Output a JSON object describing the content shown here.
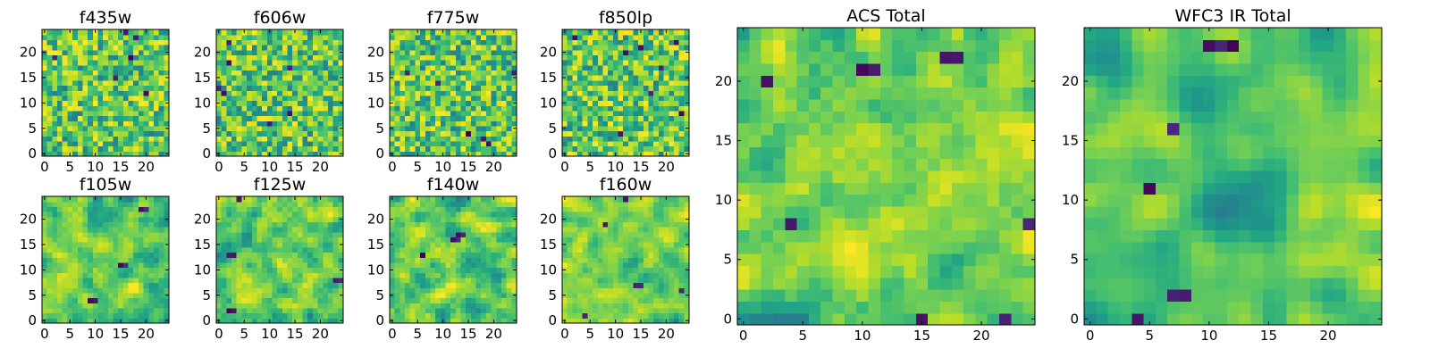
{
  "figure": {
    "colormap": "viridis",
    "colors": {
      "low": "#440154",
      "mid": "#21918c",
      "high": "#fde725",
      "frame": "#000000",
      "background": "#ffffff"
    }
  },
  "chart_data": [
    {
      "type": "heatmap",
      "title": "f435w",
      "xticks": [
        "0",
        "5",
        "10",
        "15",
        "20"
      ],
      "yticks": [
        "0",
        "5",
        "10",
        "15",
        "20"
      ],
      "xlim": [
        0,
        25
      ],
      "ylim": [
        0,
        25
      ],
      "grid": false,
      "value_range": [
        0,
        1
      ],
      "seed": 11,
      "smooth": 0,
      "low_spots": 6
    },
    {
      "type": "heatmap",
      "title": "f606w",
      "xticks": [
        "0",
        "5",
        "10",
        "15",
        "20"
      ],
      "yticks": [
        "0",
        "5",
        "10",
        "15",
        "20"
      ],
      "xlim": [
        0,
        25
      ],
      "ylim": [
        0,
        25
      ],
      "grid": false,
      "value_range": [
        0,
        1
      ],
      "seed": 23,
      "smooth": 0,
      "low_spots": 7
    },
    {
      "type": "heatmap",
      "title": "f775w",
      "xticks": [
        "0",
        "5",
        "10",
        "15",
        "20"
      ],
      "yticks": [
        "0",
        "5",
        "10",
        "15",
        "20"
      ],
      "xlim": [
        0,
        25
      ],
      "ylim": [
        0,
        25
      ],
      "grid": false,
      "value_range": [
        0,
        1
      ],
      "seed": 37,
      "smooth": 0,
      "low_spots": 6
    },
    {
      "type": "heatmap",
      "title": "f850lp",
      "xticks": [
        "0",
        "5",
        "10",
        "15",
        "20"
      ],
      "yticks": [
        "0",
        "5",
        "10",
        "15",
        "20"
      ],
      "xlim": [
        0,
        25
      ],
      "ylim": [
        0,
        25
      ],
      "grid": false,
      "value_range": [
        0,
        1
      ],
      "seed": 41,
      "smooth": 0,
      "low_spots": 8
    },
    {
      "type": "heatmap",
      "title": "f105w",
      "xticks": [
        "0",
        "5",
        "10",
        "15",
        "20"
      ],
      "yticks": [
        "0",
        "5",
        "10",
        "15",
        "20"
      ],
      "xlim": [
        0,
        25
      ],
      "ylim": [
        0,
        25
      ],
      "grid": false,
      "value_range": [
        0,
        1
      ],
      "seed": 53,
      "smooth": 1,
      "low_spots": 3
    },
    {
      "type": "heatmap",
      "title": "f125w",
      "xticks": [
        "0",
        "5",
        "10",
        "15",
        "20"
      ],
      "yticks": [
        "0",
        "5",
        "10",
        "15",
        "20"
      ],
      "xlim": [
        0,
        25
      ],
      "ylim": [
        0,
        25
      ],
      "grid": false,
      "value_range": [
        0,
        1
      ],
      "seed": 67,
      "smooth": 1,
      "low_spots": 4
    },
    {
      "type": "heatmap",
      "title": "f140w",
      "xticks": [
        "0",
        "5",
        "10",
        "15",
        "20"
      ],
      "yticks": [
        "0",
        "5",
        "10",
        "15",
        "20"
      ],
      "xlim": [
        0,
        25
      ],
      "ylim": [
        0,
        25
      ],
      "grid": false,
      "value_range": [
        0,
        1
      ],
      "seed": 71,
      "smooth": 1,
      "low_spots": 3
    },
    {
      "type": "heatmap",
      "title": "f160w",
      "xticks": [
        "0",
        "5",
        "10",
        "15",
        "20"
      ],
      "yticks": [
        "0",
        "5",
        "10",
        "15",
        "20"
      ],
      "xlim": [
        0,
        25
      ],
      "ylim": [
        0,
        25
      ],
      "grid": false,
      "value_range": [
        0,
        1
      ],
      "seed": 83,
      "smooth": 1,
      "low_spots": 5
    },
    {
      "type": "heatmap",
      "title": "ACS Total",
      "xticks": [
        "0",
        "5",
        "10",
        "15",
        "20"
      ],
      "yticks": [
        "0",
        "5",
        "10",
        "15",
        "20"
      ],
      "xlim": [
        0,
        25
      ],
      "ylim": [
        0,
        25
      ],
      "grid": false,
      "value_range": [
        0,
        1
      ],
      "seed": 97,
      "smooth": 1,
      "low_spots": 7
    },
    {
      "type": "heatmap",
      "title": "WFC3 IR Total",
      "xticks": [
        "0",
        "5",
        "10",
        "15",
        "20"
      ],
      "yticks": [
        "0",
        "5",
        "10",
        "15",
        "20"
      ],
      "xlim": [
        0,
        25
      ],
      "ylim": [
        0,
        25
      ],
      "grid": false,
      "value_range": [
        0,
        1
      ],
      "seed": 109,
      "smooth": 2,
      "low_spots": 6
    }
  ]
}
